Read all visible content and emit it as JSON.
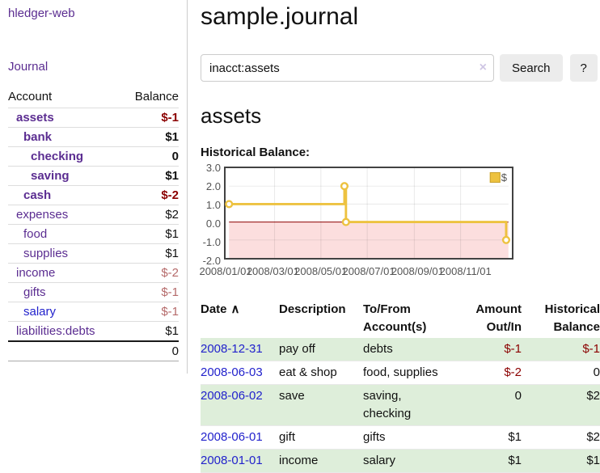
{
  "app": {
    "brand": "hledger-web",
    "nav_journal": "Journal"
  },
  "sidebar": {
    "col_account": "Account",
    "col_balance": "Balance",
    "accounts": [
      {
        "name": "assets",
        "balance": "$-1",
        "level": 1,
        "bold": true,
        "neg": "strong",
        "link": "purple"
      },
      {
        "name": "bank",
        "balance": "$1",
        "level": 2,
        "bold": true,
        "neg": "none",
        "link": "purple"
      },
      {
        "name": "checking",
        "balance": "0",
        "level": 3,
        "bold": true,
        "neg": "none",
        "link": "purple"
      },
      {
        "name": "saving",
        "balance": "$1",
        "level": 3,
        "bold": true,
        "neg": "none",
        "link": "purple"
      },
      {
        "name": "cash",
        "balance": "$-2",
        "level": 2,
        "bold": true,
        "neg": "strong",
        "link": "purple"
      },
      {
        "name": "expenses",
        "balance": "$2",
        "level": 1,
        "bold": false,
        "neg": "none",
        "link": "purple"
      },
      {
        "name": "food",
        "balance": "$1",
        "level": 2,
        "bold": false,
        "neg": "none",
        "link": "purple"
      },
      {
        "name": "supplies",
        "balance": "$1",
        "level": 2,
        "bold": false,
        "neg": "none",
        "link": "purple"
      },
      {
        "name": "income",
        "balance": "$-2",
        "level": 1,
        "bold": false,
        "neg": "soft",
        "link": "purple"
      },
      {
        "name": "gifts",
        "balance": "$-1",
        "level": 2,
        "bold": false,
        "neg": "soft",
        "link": "purple"
      },
      {
        "name": "salary",
        "balance": "$-1",
        "level": 2,
        "bold": false,
        "neg": "soft",
        "link": "blue"
      },
      {
        "name": "liabilities:debts",
        "balance": "$1",
        "level": 1,
        "bold": false,
        "neg": "none",
        "link": "purple"
      }
    ],
    "total": "0"
  },
  "header": {
    "title": "sample.journal"
  },
  "search": {
    "value": "inacct:assets",
    "clear_icon": "×",
    "button_label": "Search",
    "help_label": "?"
  },
  "account_page": {
    "heading": "assets",
    "chart_label": "Historical Balance:"
  },
  "chart_data": {
    "type": "line",
    "title": "Historical Balance",
    "step": true,
    "series": [
      {
        "name": "$",
        "color": "#EDC240",
        "points": [
          {
            "date": "2008-01-01",
            "day": 0,
            "value": 1
          },
          {
            "date": "2008-06-01",
            "day": 152,
            "value": 2
          },
          {
            "date": "2008-06-03",
            "day": 154,
            "value": 0
          },
          {
            "date": "2008-12-31",
            "day": 365,
            "value": -1
          }
        ]
      }
    ],
    "x_ticks": [
      {
        "label": "2008/01/01",
        "day": 0
      },
      {
        "label": "2008/03/01",
        "day": 60
      },
      {
        "label": "2008/05/01",
        "day": 121
      },
      {
        "label": "2008/07/01",
        "day": 182
      },
      {
        "label": "2008/09/01",
        "day": 244
      },
      {
        "label": "2008/11/01",
        "day": 305
      }
    ],
    "y_ticks": [
      {
        "label": "3.0",
        "value": 3
      },
      {
        "label": "2.0",
        "value": 2
      },
      {
        "label": "1.0",
        "value": 1
      },
      {
        "label": "0.0",
        "value": 0
      },
      {
        "label": "-1.0",
        "value": -1
      },
      {
        "label": "-2.0",
        "value": -2
      }
    ],
    "ylim": [
      -2,
      3
    ],
    "xlim_days": [
      0,
      368
    ],
    "grid": true,
    "negative_region_color": "#fcdede",
    "zero_line_color": "#8b0000",
    "legend": {
      "position": "top-right",
      "label": "$",
      "swatch_color": "#EDC240",
      "swatch_border": "#c9a12d"
    }
  },
  "register": {
    "headers": {
      "date": "Date",
      "sort_icon": "∧",
      "description": "Description",
      "accounts": "To/From Account(s)",
      "amount": "Amount Out/In",
      "balance": "Historical Balance"
    },
    "rows": [
      {
        "date": "2008-12-31",
        "description": "pay off",
        "accounts": "debts",
        "amount": "$-1",
        "amount_neg": true,
        "balance": "$-1",
        "balance_neg": true
      },
      {
        "date": "2008-06-03",
        "description": "eat & shop",
        "accounts": "food, supplies",
        "amount": "$-2",
        "amount_neg": true,
        "balance": "0",
        "balance_neg": false
      },
      {
        "date": "2008-06-02",
        "description": "save",
        "accounts": "saving, checking",
        "amount": "0",
        "amount_neg": false,
        "balance": "$2",
        "balance_neg": false
      },
      {
        "date": "2008-06-01",
        "description": "gift",
        "accounts": "gifts",
        "amount": "$1",
        "amount_neg": false,
        "balance": "$2",
        "balance_neg": false
      },
      {
        "date": "2008-01-01",
        "description": "income",
        "accounts": "salary",
        "amount": "$1",
        "amount_neg": false,
        "balance": "$1",
        "balance_neg": false
      }
    ]
  }
}
